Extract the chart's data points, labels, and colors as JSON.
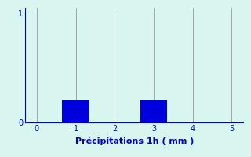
{
  "categories": [
    1,
    3
  ],
  "values": [
    0.2,
    0.2
  ],
  "bar_color": "#0000dd",
  "background_color": "#d8f5f0",
  "plot_bg_color": "#d8f5f0",
  "xlabel": "Précipitations 1h ( mm )",
  "xlabel_color": "#0000cc",
  "xlabel_fontsize": 8,
  "xlabel_fontweight": "bold",
  "tick_color": "#0000cc",
  "tick_fontsize": 7,
  "ylim": [
    0,
    1.05
  ],
  "xlim": [
    -0.3,
    5.3
  ],
  "yticks": [
    0,
    1
  ],
  "xticks": [
    0,
    1,
    2,
    3,
    4,
    5
  ],
  "bar_width": 0.7,
  "grid_color": "#999999",
  "grid_linewidth": 0.6,
  "axis_color": "#0000cc",
  "spine_linewidth": 0.8
}
